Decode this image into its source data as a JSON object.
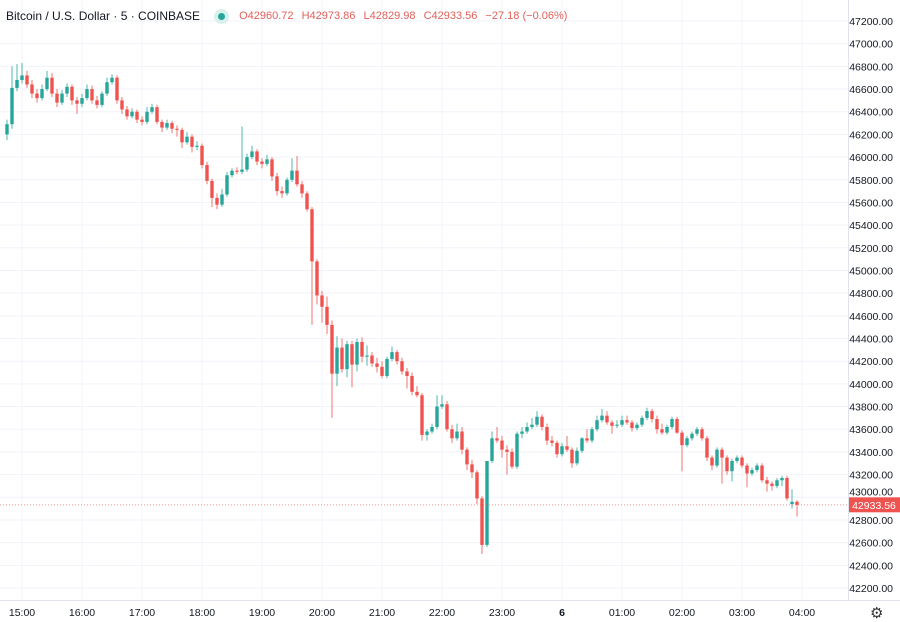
{
  "header": {
    "symbol": "Bitcoin / U.S. Dollar · 5 · COINBASE",
    "status_color": "#26a69a",
    "open_label": "O",
    "open": "42960.72",
    "high_label": "H",
    "high": "42973.86",
    "low_label": "L",
    "low": "42829.98",
    "close_label": "C",
    "close": "42933.56",
    "change": "−27.18 (−0.06%)"
  },
  "settings_icon": "gear-icon",
  "chart_data": {
    "type": "candlestick",
    "interval": "5",
    "x_start": "14:45",
    "up_color": "#26a69a",
    "down_color": "#ef5350",
    "ylim": [
      42100,
      47300
    ],
    "grid": true,
    "last_price": "42933.56",
    "y_ticks": [
      "47200.00",
      "47000.00",
      "46800.00",
      "46600.00",
      "46400.00",
      "46200.00",
      "46000.00",
      "45800.00",
      "45600.00",
      "45400.00",
      "45200.00",
      "45000.00",
      "44800.00",
      "44600.00",
      "44400.00",
      "44200.00",
      "44000.00",
      "43800.00",
      "43600.00",
      "43400.00",
      "43200.00",
      "43000.00",
      "42800.00",
      "42600.00",
      "42400.00",
      "42200.00"
    ],
    "x_ticks": [
      "15:00",
      "16:00",
      "17:00",
      "18:00",
      "19:00",
      "20:00",
      "21:00",
      "22:00",
      "23:00",
      "6",
      "01:00",
      "02:00",
      "03:00",
      "04:00"
    ],
    "ohlc": [
      [
        46200,
        46330,
        46150,
        46290
      ],
      [
        46290,
        46800,
        46250,
        46610
      ],
      [
        46610,
        46820,
        46580,
        46680
      ],
      [
        46680,
        46830,
        46650,
        46720
      ],
      [
        46720,
        46760,
        46610,
        46640
      ],
      [
        46640,
        46680,
        46520,
        46560
      ],
      [
        46560,
        46600,
        46480,
        46520
      ],
      [
        46520,
        46640,
        46500,
        46600
      ],
      [
        46600,
        46760,
        46580,
        46700
      ],
      [
        46700,
        46740,
        46530,
        46560
      ],
      [
        46560,
        46600,
        46440,
        46480
      ],
      [
        46480,
        46590,
        46460,
        46560
      ],
      [
        46560,
        46650,
        46530,
        46620
      ],
      [
        46620,
        46640,
        46460,
        46500
      ],
      [
        46500,
        46530,
        46380,
        46470
      ],
      [
        46470,
        46560,
        46440,
        46520
      ],
      [
        46520,
        46640,
        46500,
        46600
      ],
      [
        46600,
        46630,
        46470,
        46500
      ],
      [
        46500,
        46540,
        46430,
        46460
      ],
      [
        46460,
        46580,
        46440,
        46560
      ],
      [
        46560,
        46700,
        46540,
        46660
      ],
      [
        46660,
        46730,
        46640,
        46700
      ],
      [
        46700,
        46720,
        46470,
        46500
      ],
      [
        46500,
        46530,
        46380,
        46420
      ],
      [
        46420,
        46450,
        46330,
        46360
      ],
      [
        46360,
        46430,
        46340,
        46400
      ],
      [
        46400,
        46420,
        46300,
        46330
      ],
      [
        46330,
        46360,
        46280,
        46310
      ],
      [
        46310,
        46440,
        46290,
        46400
      ],
      [
        46400,
        46470,
        46380,
        46440
      ],
      [
        46440,
        46460,
        46290,
        46310
      ],
      [
        46310,
        46330,
        46220,
        46260
      ],
      [
        46260,
        46330,
        46240,
        46300
      ],
      [
        46300,
        46320,
        46210,
        46250
      ],
      [
        46250,
        46280,
        46180,
        46240
      ],
      [
        46240,
        46260,
        46080,
        46130
      ],
      [
        46130,
        46220,
        46110,
        46180
      ],
      [
        46180,
        46200,
        46040,
        46090
      ],
      [
        46090,
        46140,
        46060,
        46100
      ],
      [
        46100,
        46120,
        45900,
        45930
      ],
      [
        45930,
        45960,
        45760,
        45790
      ],
      [
        45790,
        45810,
        45560,
        45640
      ],
      [
        45640,
        45680,
        45540,
        45580
      ],
      [
        45580,
        45720,
        45560,
        45670
      ],
      [
        45670,
        45870,
        45650,
        45840
      ],
      [
        45840,
        45900,
        45820,
        45880
      ],
      [
        45880,
        45910,
        45850,
        45870
      ],
      [
        45870,
        46270,
        45850,
        45890
      ],
      [
        45890,
        46030,
        45870,
        46000
      ],
      [
        46000,
        46100,
        45980,
        46050
      ],
      [
        46050,
        46070,
        45930,
        45960
      ],
      [
        45960,
        45990,
        45900,
        45940
      ],
      [
        45940,
        46020,
        45920,
        45980
      ],
      [
        45980,
        46000,
        45790,
        45830
      ],
      [
        45830,
        45860,
        45660,
        45700
      ],
      [
        45700,
        45740,
        45640,
        45680
      ],
      [
        45680,
        45820,
        45660,
        45800
      ],
      [
        45800,
        45990,
        45780,
        45880
      ],
      [
        45880,
        46010,
        45740,
        45760
      ],
      [
        45760,
        45790,
        45640,
        45680
      ],
      [
        45680,
        45700,
        45520,
        45540
      ],
      [
        45540,
        45560,
        44520,
        45080
      ],
      [
        45080,
        45100,
        44700,
        44780
      ],
      [
        44780,
        44820,
        44540,
        44680
      ],
      [
        44680,
        44770,
        44440,
        44520
      ],
      [
        44520,
        44560,
        43700,
        44090
      ],
      [
        44090,
        44420,
        43980,
        44320
      ],
      [
        44320,
        44400,
        44100,
        44130
      ],
      [
        44130,
        44380,
        44060,
        44350
      ],
      [
        44350,
        44380,
        43970,
        44170
      ],
      [
        44170,
        44400,
        44110,
        44370
      ],
      [
        44370,
        44410,
        44190,
        44240
      ],
      [
        44240,
        44340,
        44160,
        44250
      ],
      [
        44250,
        44280,
        44150,
        44180
      ],
      [
        44180,
        44230,
        44100,
        44150
      ],
      [
        44150,
        44200,
        44050,
        44070
      ],
      [
        44070,
        44240,
        44050,
        44220
      ],
      [
        44220,
        44330,
        44200,
        44280
      ],
      [
        44280,
        44300,
        44170,
        44200
      ],
      [
        44200,
        44230,
        44080,
        44110
      ],
      [
        44110,
        44140,
        43960,
        44070
      ],
      [
        44070,
        44100,
        43900,
        43930
      ],
      [
        43930,
        43980,
        43880,
        43900
      ],
      [
        43900,
        43920,
        43500,
        43550
      ],
      [
        43550,
        43600,
        43500,
        43580
      ],
      [
        43580,
        43650,
        43560,
        43620
      ],
      [
        43620,
        43900,
        43600,
        43800
      ],
      [
        43800,
        43900,
        43780,
        43820
      ],
      [
        43820,
        43850,
        43580,
        43600
      ],
      [
        43600,
        43640,
        43480,
        43520
      ],
      [
        43520,
        43650,
        43500,
        43580
      ],
      [
        43580,
        43620,
        43380,
        43420
      ],
      [
        43420,
        43440,
        43240,
        43290
      ],
      [
        43290,
        43330,
        43170,
        43220
      ],
      [
        43220,
        43240,
        42940,
        42990
      ],
      [
        42990,
        43010,
        42500,
        42580
      ],
      [
        42580,
        43320,
        42560,
        43320
      ],
      [
        43320,
        43580,
        43300,
        43520
      ],
      [
        43520,
        43620,
        43480,
        43500
      ],
      [
        43500,
        43540,
        43350,
        43420
      ],
      [
        43420,
        43460,
        43200,
        43400
      ],
      [
        43400,
        43430,
        43250,
        43270
      ],
      [
        43270,
        43580,
        43250,
        43560
      ],
      [
        43560,
        43620,
        43520,
        43580
      ],
      [
        43580,
        43660,
        43560,
        43620
      ],
      [
        43620,
        43700,
        43600,
        43640
      ],
      [
        43640,
        43760,
        43620,
        43710
      ],
      [
        43710,
        43730,
        43590,
        43620
      ],
      [
        43620,
        43650,
        43460,
        43500
      ],
      [
        43500,
        43540,
        43450,
        43480
      ],
      [
        43480,
        43500,
        43350,
        43380
      ],
      [
        43380,
        43480,
        43360,
        43450
      ],
      [
        43450,
        43540,
        43400,
        43420
      ],
      [
        43420,
        43440,
        43260,
        43300
      ],
      [
        43300,
        43440,
        43280,
        43410
      ],
      [
        43410,
        43530,
        43390,
        43520
      ],
      [
        43520,
        43600,
        43480,
        43500
      ],
      [
        43500,
        43620,
        43480,
        43600
      ],
      [
        43600,
        43720,
        43580,
        43680
      ],
      [
        43680,
        43780,
        43660,
        43720
      ],
      [
        43720,
        43760,
        43640,
        43660
      ],
      [
        43660,
        43680,
        43560,
        43630
      ],
      [
        43630,
        43680,
        43610,
        43640
      ],
      [
        43640,
        43720,
        43620,
        43680
      ],
      [
        43680,
        43720,
        43640,
        43660
      ],
      [
        43660,
        43680,
        43580,
        43610
      ],
      [
        43610,
        43660,
        43590,
        43640
      ],
      [
        43640,
        43720,
        43620,
        43700
      ],
      [
        43700,
        43790,
        43680,
        43760
      ],
      [
        43760,
        43780,
        43660,
        43690
      ],
      [
        43690,
        43720,
        43560,
        43600
      ],
      [
        43600,
        43650,
        43550,
        43570
      ],
      [
        43570,
        43640,
        43550,
        43620
      ],
      [
        43620,
        43710,
        43600,
        43690
      ],
      [
        43690,
        43710,
        43560,
        43570
      ],
      [
        43570,
        43590,
        43230,
        43460
      ],
      [
        43460,
        43540,
        43440,
        43520
      ],
      [
        43520,
        43580,
        43500,
        43560
      ],
      [
        43560,
        43620,
        43540,
        43600
      ],
      [
        43600,
        43620,
        43500,
        43520
      ],
      [
        43520,
        43540,
        43320,
        43350
      ],
      [
        43350,
        43370,
        43240,
        43280
      ],
      [
        43280,
        43440,
        43260,
        43420
      ],
      [
        43420,
        43440,
        43120,
        43350
      ],
      [
        43350,
        43370,
        43200,
        43230
      ],
      [
        43230,
        43340,
        43140,
        43320
      ],
      [
        43320,
        43370,
        43300,
        43350
      ],
      [
        43350,
        43370,
        43260,
        43280
      ],
      [
        43280,
        43300,
        43090,
        43210
      ],
      [
        43210,
        43260,
        43190,
        43240
      ],
      [
        43240,
        43300,
        43220,
        43280
      ],
      [
        43280,
        43300,
        43130,
        43150
      ],
      [
        43150,
        43180,
        43050,
        43120
      ],
      [
        43120,
        43140,
        43060,
        43100
      ],
      [
        43100,
        43170,
        43080,
        43150
      ],
      [
        43150,
        43190,
        43100,
        43170
      ],
      [
        43170,
        43190,
        42970,
        42990
      ],
      [
        42940,
        43070,
        42900,
        42960
      ],
      [
        42960.72,
        42973.86,
        42829.98,
        42933.56
      ]
    ]
  }
}
